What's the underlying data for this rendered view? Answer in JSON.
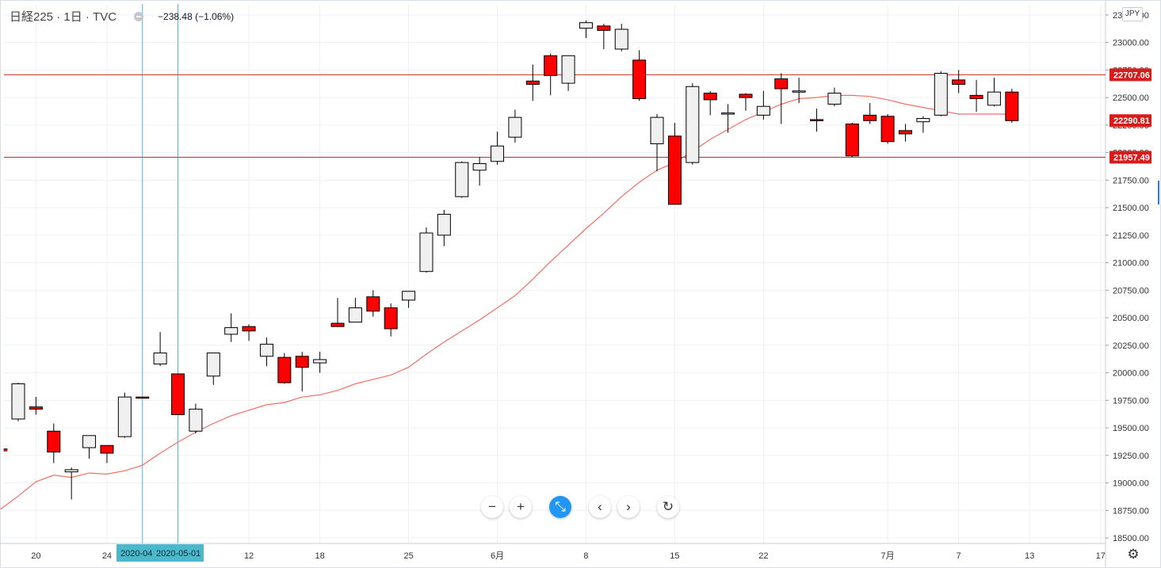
{
  "legend": {
    "symbol": "日経225 · 1日 · TVC",
    "change": "−238.48 (−1.06%)"
  },
  "currency": "JPY",
  "colors": {
    "up_body": "#f0f0f0",
    "down_body": "#ff0000",
    "wick": "#000000",
    "ma_line": "#f07064",
    "hline": "#c0302a",
    "crosshair": "#5aaee0",
    "date_tag_bg": "#4cb8cc",
    "price_tag_bg": "#d81b1b"
  },
  "chart_data": {
    "type": "candlestick",
    "y_axis": {
      "range": [
        18450,
        23350
      ],
      "ticks": [
        "23250.00",
        "23000.00",
        "22750.00",
        "22500.00",
        "22250.00",
        "22000.00",
        "21750.00",
        "21500.00",
        "21250.00",
        "21000.00",
        "20750.00",
        "20500.00",
        "20250.00",
        "20000.00",
        "19750.00",
        "19500.00",
        "19250.00",
        "19000.00",
        "18750.00",
        "18500.00"
      ]
    },
    "x_axis": {
      "ticks": [
        {
          "label": "20",
          "bar": 1
        },
        {
          "label": "24",
          "bar": 5
        },
        {
          "label": "12",
          "bar": 13
        },
        {
          "label": "18",
          "bar": 17
        },
        {
          "label": "25",
          "bar": 22
        },
        {
          "label": "6月",
          "bar": 27
        },
        {
          "label": "8",
          "bar": 32
        },
        {
          "label": "15",
          "bar": 37
        },
        {
          "label": "22",
          "bar": 42
        },
        {
          "label": "7月",
          "bar": 49
        },
        {
          "label": "7",
          "bar": 53
        },
        {
          "label": "13",
          "bar": 57
        },
        {
          "label": "17",
          "bar": 61
        }
      ]
    },
    "horizontal_lines": [
      {
        "value": 22707.06,
        "label": "22707.06"
      },
      {
        "value": 21957.49,
        "label": "21957.49"
      }
    ],
    "last_price": {
      "value": 22290.81,
      "label": "22290.81"
    },
    "crosshair_dates": [
      {
        "bar": 7,
        "label": "2020-04"
      },
      {
        "bar": 9,
        "label": "2020-05-01"
      }
    ],
    "candles": [
      [
        19580,
        19900,
        19560,
        19910
      ],
      [
        19690,
        19670,
        19620,
        19780
      ],
      [
        19470,
        19280,
        19180,
        19540
      ],
      [
        19100,
        19120,
        18850,
        19140
      ],
      [
        19320,
        19430,
        19220,
        19430
      ],
      [
        19340,
        19270,
        19180,
        19340
      ],
      [
        19420,
        19780,
        19410,
        19820
      ],
      [
        19780,
        19770,
        19770,
        19780
      ],
      [
        20080,
        20180,
        20060,
        20370
      ],
      [
        19990,
        19620,
        19620,
        19990
      ],
      [
        19470,
        19670,
        19450,
        19720
      ],
      [
        19970,
        20180,
        19890,
        20180
      ],
      [
        20350,
        20410,
        20280,
        20540
      ],
      [
        20420,
        20380,
        20290,
        20440
      ],
      [
        20150,
        20260,
        20060,
        20320
      ],
      [
        20140,
        19910,
        19900,
        20180
      ],
      [
        20150,
        20050,
        19830,
        20190
      ],
      [
        20090,
        20120,
        20000,
        20190
      ],
      [
        20450,
        20420,
        20420,
        20680
      ],
      [
        20460,
        20590,
        20460,
        20680
      ],
      [
        20690,
        20560,
        20510,
        20750
      ],
      [
        20590,
        20400,
        20330,
        20630
      ],
      [
        20660,
        20740,
        20590,
        20740
      ],
      [
        20920,
        21270,
        20910,
        21320
      ],
      [
        21250,
        21440,
        21150,
        21480
      ],
      [
        21600,
        21910,
        21590,
        21920
      ],
      [
        21840,
        21900,
        21700,
        21960
      ],
      [
        21920,
        22060,
        21890,
        22190
      ],
      [
        22140,
        22320,
        22090,
        22390
      ],
      [
        22650,
        22620,
        22470,
        22800
      ],
      [
        22880,
        22700,
        22520,
        22900
      ],
      [
        22630,
        22880,
        22560,
        22880
      ],
      [
        23130,
        23180,
        23040,
        23200
      ],
      [
        23150,
        23110,
        22940,
        23170
      ],
      [
        22940,
        23120,
        22920,
        23170
      ],
      [
        22840,
        22490,
        22470,
        22930
      ],
      [
        22080,
        22320,
        21830,
        22350
      ],
      [
        22150,
        21530,
        21530,
        22270
      ],
      [
        21910,
        22600,
        21890,
        22630
      ],
      [
        22540,
        22480,
        22340,
        22560
      ],
      [
        22360,
        22360,
        22180,
        22440
      ],
      [
        22530,
        22500,
        22380,
        22540
      ],
      [
        22340,
        22420,
        22300,
        22560
      ],
      [
        22670,
        22580,
        22260,
        22720
      ],
      [
        22560,
        22560,
        22450,
        22680
      ],
      [
        22300,
        22290,
        22190,
        22400
      ],
      [
        22440,
        22540,
        22420,
        22590
      ],
      [
        22260,
        21970,
        21960,
        22270
      ],
      [
        22340,
        22290,
        22260,
        22450
      ],
      [
        22330,
        22100,
        22080,
        22350
      ],
      [
        22200,
        22170,
        22100,
        22260
      ],
      [
        22280,
        22310,
        22180,
        22330
      ],
      [
        22340,
        22720,
        22330,
        22740
      ],
      [
        22660,
        22620,
        22540,
        22750
      ],
      [
        22520,
        22490,
        22370,
        22660
      ],
      [
        22430,
        22550,
        22420,
        22680
      ],
      [
        22550,
        22290,
        22270,
        22580
      ]
    ],
    "ma_series": [
      {
        "bar": -1,
        "value": 18760
      },
      {
        "bar": 0,
        "value": 18880
      },
      {
        "bar": 1,
        "value": 19010
      },
      {
        "bar": 2,
        "value": 19070
      },
      {
        "bar": 3,
        "value": 19050
      },
      {
        "bar": 4,
        "value": 19090
      },
      {
        "bar": 5,
        "value": 19080
      },
      {
        "bar": 6,
        "value": 19110
      },
      {
        "bar": 7,
        "value": 19160
      },
      {
        "bar": 8,
        "value": 19270
      },
      {
        "bar": 9,
        "value": 19370
      },
      {
        "bar": 10,
        "value": 19460
      },
      {
        "bar": 11,
        "value": 19540
      },
      {
        "bar": 12,
        "value": 19610
      },
      {
        "bar": 13,
        "value": 19660
      },
      {
        "bar": 14,
        "value": 19710
      },
      {
        "bar": 15,
        "value": 19730
      },
      {
        "bar": 16,
        "value": 19780
      },
      {
        "bar": 17,
        "value": 19800
      },
      {
        "bar": 18,
        "value": 19840
      },
      {
        "bar": 19,
        "value": 19900
      },
      {
        "bar": 20,
        "value": 19940
      },
      {
        "bar": 21,
        "value": 19980
      },
      {
        "bar": 22,
        "value": 20050
      },
      {
        "bar": 23,
        "value": 20170
      },
      {
        "bar": 24,
        "value": 20280
      },
      {
        "bar": 25,
        "value": 20380
      },
      {
        "bar": 26,
        "value": 20480
      },
      {
        "bar": 27,
        "value": 20590
      },
      {
        "bar": 28,
        "value": 20700
      },
      {
        "bar": 29,
        "value": 20850
      },
      {
        "bar": 30,
        "value": 21010
      },
      {
        "bar": 31,
        "value": 21160
      },
      {
        "bar": 32,
        "value": 21310
      },
      {
        "bar": 33,
        "value": 21450
      },
      {
        "bar": 34,
        "value": 21600
      },
      {
        "bar": 35,
        "value": 21730
      },
      {
        "bar": 36,
        "value": 21840
      },
      {
        "bar": 37,
        "value": 21910
      },
      {
        "bar": 38,
        "value": 22010
      },
      {
        "bar": 39,
        "value": 22120
      },
      {
        "bar": 40,
        "value": 22210
      },
      {
        "bar": 41,
        "value": 22300
      },
      {
        "bar": 42,
        "value": 22370
      },
      {
        "bar": 43,
        "value": 22440
      },
      {
        "bar": 44,
        "value": 22490
      },
      {
        "bar": 45,
        "value": 22500
      },
      {
        "bar": 46,
        "value": 22520
      },
      {
        "bar": 47,
        "value": 22520
      },
      {
        "bar": 48,
        "value": 22510
      },
      {
        "bar": 49,
        "value": 22480
      },
      {
        "bar": 50,
        "value": 22440
      },
      {
        "bar": 51,
        "value": 22410
      },
      {
        "bar": 52,
        "value": 22380
      },
      {
        "bar": 53,
        "value": 22350
      },
      {
        "bar": 54,
        "value": 22350
      },
      {
        "bar": 55,
        "value": 22350
      },
      {
        "bar": 56,
        "value": 22350
      }
    ]
  },
  "nav_buttons": [
    {
      "name": "zoom-out-button",
      "glyph": "−"
    },
    {
      "name": "zoom-in-button",
      "glyph": "+"
    },
    {
      "name": "reset-zoom-button",
      "glyph": "⤡"
    },
    {
      "name": "scroll-left-button",
      "glyph": "‹"
    },
    {
      "name": "scroll-right-button",
      "glyph": "›"
    },
    {
      "name": "reset-chart-button",
      "glyph": "↻"
    }
  ],
  "settings_icon": "⚙"
}
